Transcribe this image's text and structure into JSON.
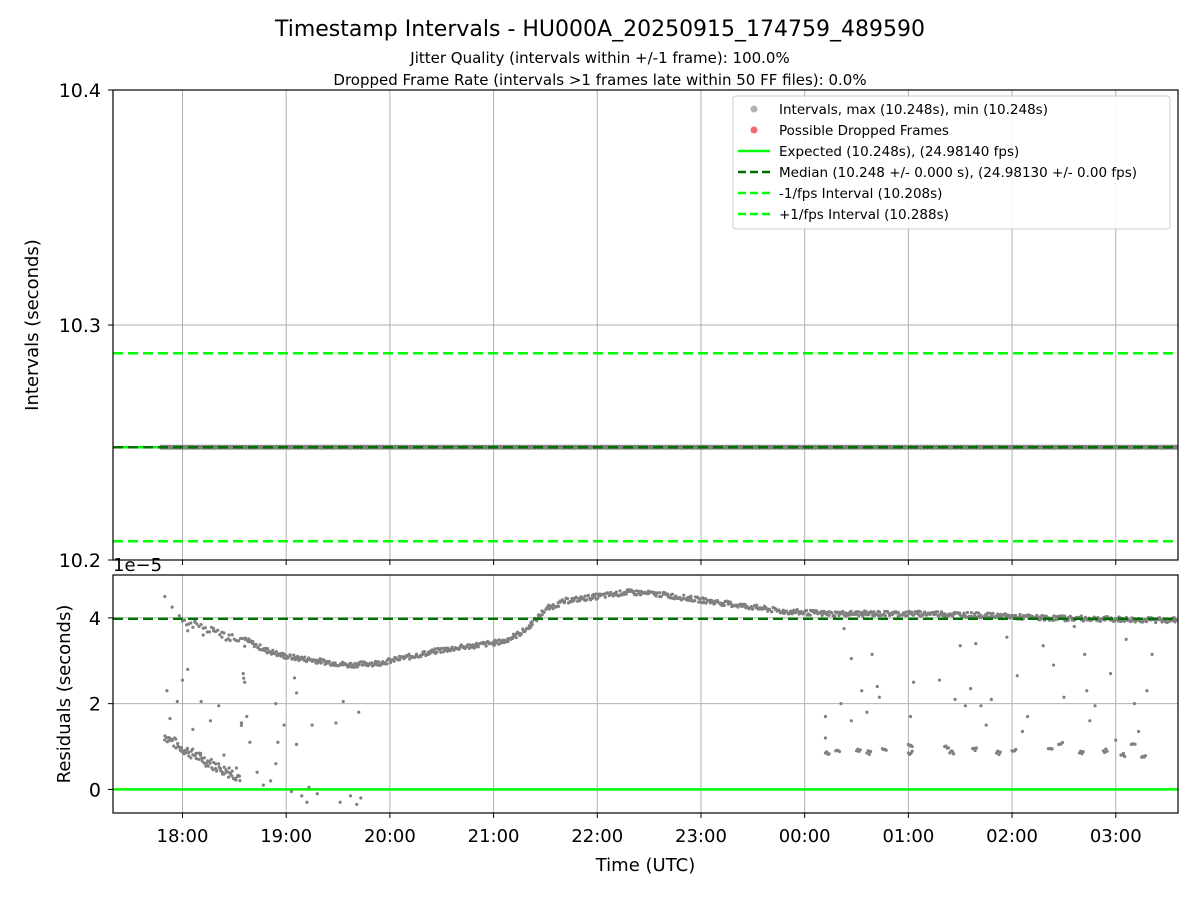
{
  "figure": {
    "title": "Timestamp Intervals - HU000A_20250915_174759_489590",
    "subtitle_jitter": "Jitter Quality (intervals within +/-1 frame): 100.0%",
    "subtitle_dropped": "Dropped Frame Rate (intervals >1 frames late within 50 FF files): 0.0%"
  },
  "colors": {
    "points": "#808080",
    "dropped": "#f05050",
    "expected": "#00ff00",
    "median": "#007000",
    "band": "#00ff00",
    "grid": "#b0b0b0"
  },
  "chart_data": [
    {
      "type": "scatter",
      "panel": "top",
      "ylabel": "Intervals (seconds)",
      "xlabel": "",
      "ylim": [
        10.2,
        10.4
      ],
      "yticks": [
        "10.2",
        "10.3",
        "10.4"
      ],
      "xlim_hours": [
        17.33,
        27.6
      ],
      "xticks": [
        "18:00",
        "19:00",
        "20:00",
        "21:00",
        "22:00",
        "23:00",
        "00:00",
        "01:00",
        "02:00",
        "03:00"
      ],
      "grid": true,
      "legend_position": "top-right",
      "legend": [
        {
          "label": "Intervals, max (10.248s), min (10.248s)",
          "kind": "point",
          "color": "#808080"
        },
        {
          "label": "Possible Dropped Frames",
          "kind": "point",
          "color": "#f05050"
        },
        {
          "label": "Expected (10.248s), (24.98140 fps)",
          "kind": "line",
          "color": "#00ff00"
        },
        {
          "label": "Median (10.248 +/- 0.000 s), (24.98130 +/- 0.00 fps)",
          "kind": "dash",
          "color": "#007000"
        },
        {
          "label": "-1/fps Interval (10.208s)",
          "kind": "dash",
          "color": "#00ff00"
        },
        {
          "label": "+1/fps Interval (10.288s)",
          "kind": "dash",
          "color": "#00ff00"
        }
      ],
      "series": [
        {
          "name": "Intervals, max (10.248s), min (10.248s)",
          "x_start": "17:48",
          "x_end": "03:36",
          "y": 10.248
        },
        {
          "name": "Expected (10.248s), (24.98140 fps)",
          "y": 10.248
        },
        {
          "name": "Median (10.248 +/- 0.000 s), (24.98130 +/- 0.00 fps)",
          "y": 10.248
        },
        {
          "name": "-1/fps Interval (10.208s)",
          "y": 10.208
        },
        {
          "name": "+1/fps Interval (10.288s)",
          "y": 10.288
        }
      ]
    },
    {
      "type": "scatter",
      "panel": "bottom",
      "ylabel": "Residuals (seconds)",
      "xlabel": "Time (UTC)",
      "offset_label": "1e−5",
      "ylim": [
        -0.55,
        5.0
      ],
      "yticks": [
        "0",
        "2",
        "4"
      ],
      "grid": true,
      "median_residual": 3.98,
      "expected_residual": 0,
      "main_trend": [
        [
          17.83,
          1.25
        ],
        [
          18.0,
          0.95
        ],
        [
          18.2,
          0.7
        ],
        [
          18.4,
          0.45
        ],
        [
          18.55,
          0.3
        ],
        [
          18.6,
          3.5
        ],
        [
          18.8,
          3.25
        ],
        [
          19.0,
          3.1
        ],
        [
          19.3,
          3.0
        ],
        [
          19.6,
          2.9
        ],
        [
          19.9,
          2.95
        ],
        [
          20.2,
          3.1
        ],
        [
          20.5,
          3.25
        ],
        [
          20.8,
          3.35
        ],
        [
          21.1,
          3.45
        ],
        [
          21.3,
          3.7
        ],
        [
          21.5,
          4.2
        ],
        [
          21.7,
          4.4
        ],
        [
          22.0,
          4.5
        ],
        [
          22.3,
          4.6
        ],
        [
          22.6,
          4.55
        ],
        [
          22.9,
          4.45
        ],
        [
          23.2,
          4.35
        ],
        [
          23.5,
          4.25
        ],
        [
          23.8,
          4.15
        ],
        [
          24.2,
          4.1
        ],
        [
          24.8,
          4.1
        ],
        [
          25.3,
          4.1
        ],
        [
          25.8,
          4.05
        ],
        [
          26.3,
          4.0
        ],
        [
          26.8,
          3.98
        ],
        [
          27.3,
          3.95
        ],
        [
          27.6,
          3.95
        ]
      ],
      "early_cluster": [
        [
          17.83,
          4.5
        ],
        [
          17.9,
          4.25
        ],
        [
          17.97,
          4.05
        ],
        [
          18.05,
          3.7
        ],
        [
          18.12,
          3.9
        ],
        [
          18.2,
          3.6
        ],
        [
          18.3,
          3.75
        ],
        [
          18.38,
          3.55
        ],
        [
          18.45,
          3.6
        ],
        [
          17.85,
          2.3
        ],
        [
          17.88,
          1.65
        ],
        [
          17.95,
          2.05
        ],
        [
          18.0,
          2.55
        ],
        [
          18.05,
          2.8
        ],
        [
          18.1,
          1.4
        ],
        [
          18.18,
          2.05
        ],
        [
          18.27,
          1.6
        ],
        [
          18.35,
          1.95
        ],
        [
          18.4,
          0.8
        ],
        [
          18.45,
          0.5
        ],
        [
          18.52,
          0.5
        ],
        [
          18.6,
          2.5
        ],
        [
          18.62,
          1.7
        ],
        [
          18.65,
          1.1
        ],
        [
          18.72,
          0.4
        ],
        [
          18.78,
          0.1
        ],
        [
          18.85,
          0.2
        ],
        [
          18.9,
          0.6
        ],
        [
          18.92,
          1.1
        ],
        [
          18.98,
          1.5
        ],
        [
          19.05,
          -0.05
        ],
        [
          19.08,
          2.6
        ],
        [
          19.1,
          1.05
        ],
        [
          19.15,
          -0.15
        ],
        [
          19.2,
          -0.3
        ],
        [
          19.22,
          0.05
        ],
        [
          19.3,
          -0.1
        ],
        [
          19.48,
          1.55
        ],
        [
          19.52,
          -0.3
        ],
        [
          19.55,
          2.05
        ],
        [
          19.62,
          -0.15
        ],
        [
          19.68,
          -0.35
        ],
        [
          19.7,
          1.8
        ],
        [
          19.72,
          -0.2
        ],
        [
          19.1,
          2.25
        ],
        [
          18.9,
          2.0
        ],
        [
          19.25,
          1.5
        ]
      ],
      "late_scatter": [
        [
          24.2,
          1.7
        ],
        [
          24.2,
          1.2
        ],
        [
          24.2,
          0.85
        ],
        [
          24.3,
          0.9
        ],
        [
          24.35,
          2.0
        ],
        [
          24.38,
          3.75
        ],
        [
          24.45,
          3.05
        ],
        [
          24.45,
          1.6
        ],
        [
          24.5,
          0.9
        ],
        [
          24.55,
          2.3
        ],
        [
          24.6,
          1.8
        ],
        [
          24.6,
          0.85
        ],
        [
          24.65,
          3.15
        ],
        [
          24.7,
          2.4
        ],
        [
          24.72,
          2.15
        ],
        [
          24.75,
          0.95
        ],
        [
          25.0,
          1.05
        ],
        [
          25.0,
          0.85
        ],
        [
          25.02,
          1.7
        ],
        [
          25.05,
          2.5
        ],
        [
          25.3,
          2.55
        ],
        [
          25.35,
          1.0
        ],
        [
          25.4,
          0.85
        ],
        [
          25.45,
          2.1
        ],
        [
          25.5,
          3.35
        ],
        [
          25.55,
          1.95
        ],
        [
          25.6,
          2.35
        ],
        [
          25.62,
          0.95
        ],
        [
          25.65,
          3.4
        ],
        [
          25.7,
          1.95
        ],
        [
          25.75,
          1.5
        ],
        [
          25.8,
          2.1
        ],
        [
          25.85,
          0.85
        ],
        [
          25.95,
          3.55
        ],
        [
          26.0,
          0.9
        ],
        [
          26.05,
          2.65
        ],
        [
          26.1,
          1.35
        ],
        [
          26.15,
          1.7
        ],
        [
          26.3,
          3.35
        ],
        [
          26.35,
          0.95
        ],
        [
          26.4,
          2.9
        ],
        [
          26.45,
          1.05
        ],
        [
          26.5,
          2.15
        ],
        [
          26.6,
          3.8
        ],
        [
          26.65,
          0.85
        ],
        [
          26.7,
          3.15
        ],
        [
          26.72,
          2.3
        ],
        [
          26.75,
          1.6
        ],
        [
          26.8,
          1.95
        ],
        [
          26.88,
          0.9
        ],
        [
          26.95,
          2.7
        ],
        [
          27.0,
          1.15
        ],
        [
          27.05,
          0.8
        ],
        [
          27.1,
          3.5
        ],
        [
          27.15,
          1.05
        ],
        [
          27.18,
          2.0
        ],
        [
          27.22,
          1.35
        ],
        [
          27.25,
          0.75
        ],
        [
          27.3,
          2.3
        ],
        [
          27.35,
          3.15
        ]
      ]
    }
  ]
}
